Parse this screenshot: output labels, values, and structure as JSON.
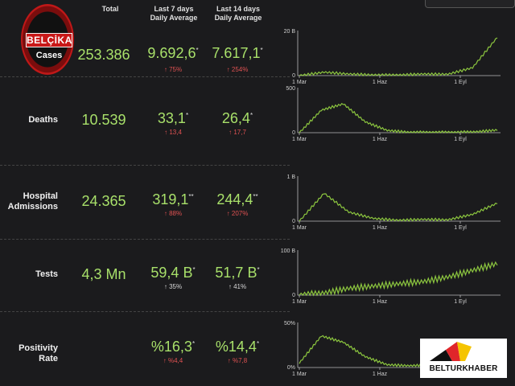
{
  "header": {
    "total": "Total",
    "last7_line1": "Last 7 days",
    "last7_line2": "Daily Average",
    "last14_line1": "Last 14 days",
    "last14_line2": "Daily Average"
  },
  "logo": {
    "country": "BELÇİKA",
    "label": "Cases"
  },
  "rows": [
    {
      "label_line1": "",
      "label_line2": "",
      "total": "253.386",
      "avg7": "9.692,6",
      "avg7_mark": "*",
      "chg7": "↑ 75%",
      "avg14": "7.617,1",
      "avg14_mark": "*",
      "chg14": "↑ 254%",
      "ymax": "20 B",
      "ymin": "0"
    },
    {
      "label_line1": "Deaths",
      "label_line2": "",
      "total": "10.539",
      "avg7": "33,1",
      "avg7_mark": "*",
      "chg7": "↑ 13,4",
      "avg14": "26,4",
      "avg14_mark": "*",
      "chg14": "↑ 17,7",
      "ymax": "500",
      "ymin": "0"
    },
    {
      "label_line1": "Hospital",
      "label_line2": "Admissions",
      "total": "24.365",
      "avg7": "319,1",
      "avg7_mark": "**",
      "chg7": "↑ 88%",
      "avg14": "244,4",
      "avg14_mark": "**",
      "chg14": "↑ 207%",
      "ymax": "1 B",
      "ymin": "0"
    },
    {
      "label_line1": "Tests",
      "label_line2": "",
      "total": "4,3 Mn",
      "avg7": "59,4 B",
      "avg7_mark": "*",
      "chg7": "↑ 35%",
      "avg14": "51,7 B",
      "avg14_mark": "*",
      "chg14": "↑ 41%",
      "ymax": "100 B",
      "ymin": "0"
    },
    {
      "label_line1": "Positivity Rate",
      "label_line2": "",
      "total": "",
      "avg7": "%16,3",
      "avg7_mark": "*",
      "chg7": "↑ %4,4",
      "avg14": "%14,4",
      "avg14_mark": "*",
      "chg14": "↑ %7,8",
      "ymax": "50%",
      "ymin": "0%"
    }
  ],
  "xticks": [
    "1 Mar",
    "1 Haz",
    "1 Eyl"
  ],
  "watermark": "BELTURKHABER",
  "colors": {
    "value_green": "#a8e06a",
    "line_green": "#8cc63f",
    "up_red": "#e05252",
    "bg": "#1b1b1d"
  },
  "chart_data": [
    {
      "type": "line",
      "name": "Cases",
      "ylim": [
        0,
        20000
      ],
      "x": [
        "1 Mar",
        "1 Nis",
        "1 May",
        "1 Haz",
        "1 Tem",
        "1 Ağu",
        "1 Eyl",
        "1 Eki",
        "20 Eki"
      ],
      "values": [
        0,
        1500,
        700,
        300,
        300,
        700,
        600,
        3500,
        17000
      ]
    },
    {
      "type": "line",
      "name": "Deaths",
      "ylim": [
        0,
        500
      ],
      "x": [
        "1 Mar",
        "1 Nis",
        "10 Nis",
        "1 May",
        "1 Haz",
        "1 Tem",
        "1 Ağu",
        "1 Eyl",
        "1 Eki",
        "20 Eki"
      ],
      "values": [
        0,
        250,
        320,
        120,
        25,
        5,
        5,
        5,
        10,
        30
      ]
    },
    {
      "type": "line",
      "name": "Hospital Admissions",
      "ylim": [
        0,
        1000
      ],
      "x": [
        "15 Mar",
        "28 Mar",
        "1 May",
        "1 Haz",
        "1 Tem",
        "1 Ağu",
        "1 Eyl",
        "1 Eki",
        "20 Eki"
      ],
      "values": [
        0,
        620,
        200,
        60,
        20,
        40,
        30,
        150,
        400
      ]
    },
    {
      "type": "line",
      "name": "Tests",
      "ylim": [
        0,
        100000
      ],
      "x": [
        "1 Mar",
        "1 Nis",
        "1 May",
        "1 Haz",
        "1 Tem",
        "1 Ağu",
        "1 Eyl",
        "1 Eki",
        "20 Eki"
      ],
      "values": [
        0,
        5000,
        15000,
        20000,
        25000,
        30000,
        40000,
        55000,
        70000
      ]
    },
    {
      "type": "line",
      "name": "Positivity Rate",
      "ylim": [
        0,
        50
      ],
      "x": [
        "1 Mar",
        "1 Nis",
        "15 Nis",
        "1 May",
        "1 Haz",
        "1 Tem",
        "1 Ağu",
        "1 Eyl",
        "1 Eki",
        "20 Eki"
      ],
      "values": [
        5,
        35,
        28,
        12,
        3,
        2,
        3,
        3,
        8,
        16
      ]
    }
  ]
}
